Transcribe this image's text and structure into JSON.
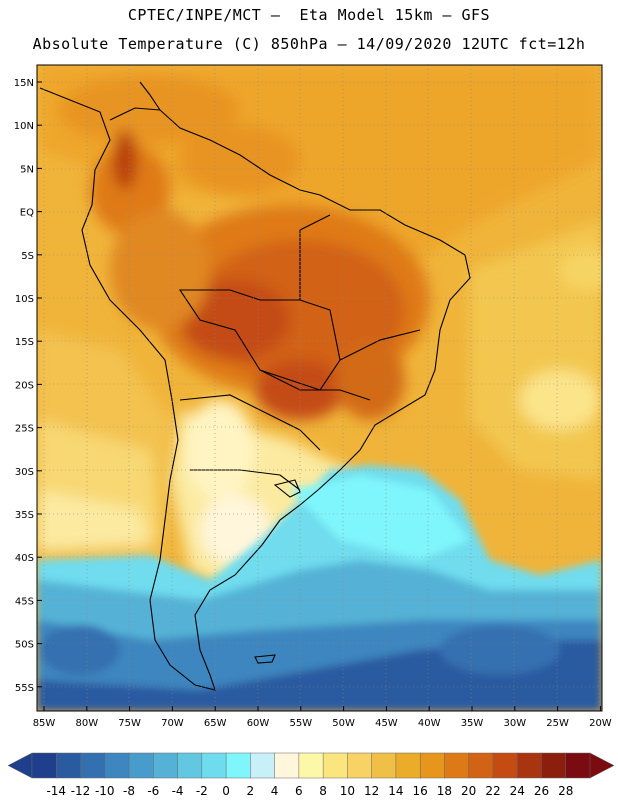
{
  "header": {
    "line1": "CPTEC/INPE/MCT –  Eta Model 15km – GFS",
    "line2": "Absolute Temperature (C) 850hPa – 14/09/2020 12UTC fct=12h"
  },
  "map": {
    "lat_labels": [
      "15N",
      "10N",
      "5N",
      "EQ",
      "5S",
      "10S",
      "15S",
      "20S",
      "25S",
      "30S",
      "35S",
      "40S",
      "45S",
      "50S",
      "55S"
    ],
    "lon_labels": [
      "85W",
      "80W",
      "75W",
      "70W",
      "65W",
      "60W",
      "55W",
      "50W",
      "45W",
      "40W",
      "35W",
      "30W",
      "25W",
      "20W"
    ]
  },
  "colorbar": {
    "labels": [
      "-14",
      "-12",
      "-10",
      "-8",
      "-6",
      "-4",
      "-2",
      "0",
      "2",
      "4",
      "6",
      "8",
      "10",
      "12",
      "14",
      "16",
      "18",
      "20",
      "22",
      "24",
      "26",
      "28"
    ],
    "colors": [
      "#1f3f8c",
      "#2a5aa0",
      "#3470b0",
      "#3d86bf",
      "#489ccb",
      "#55b2d6",
      "#62c8e2",
      "#6fdcee",
      "#7ff6fb",
      "#c8f0f8",
      "#fff6dc",
      "#fdf7a8",
      "#fbe57f",
      "#f6d364",
      "#f0bf45",
      "#ebac2a",
      "#e6961c",
      "#de7a16",
      "#d26214",
      "#c44c12",
      "#a83510",
      "#8c1e0e",
      "#7a0b10"
    ]
  }
}
